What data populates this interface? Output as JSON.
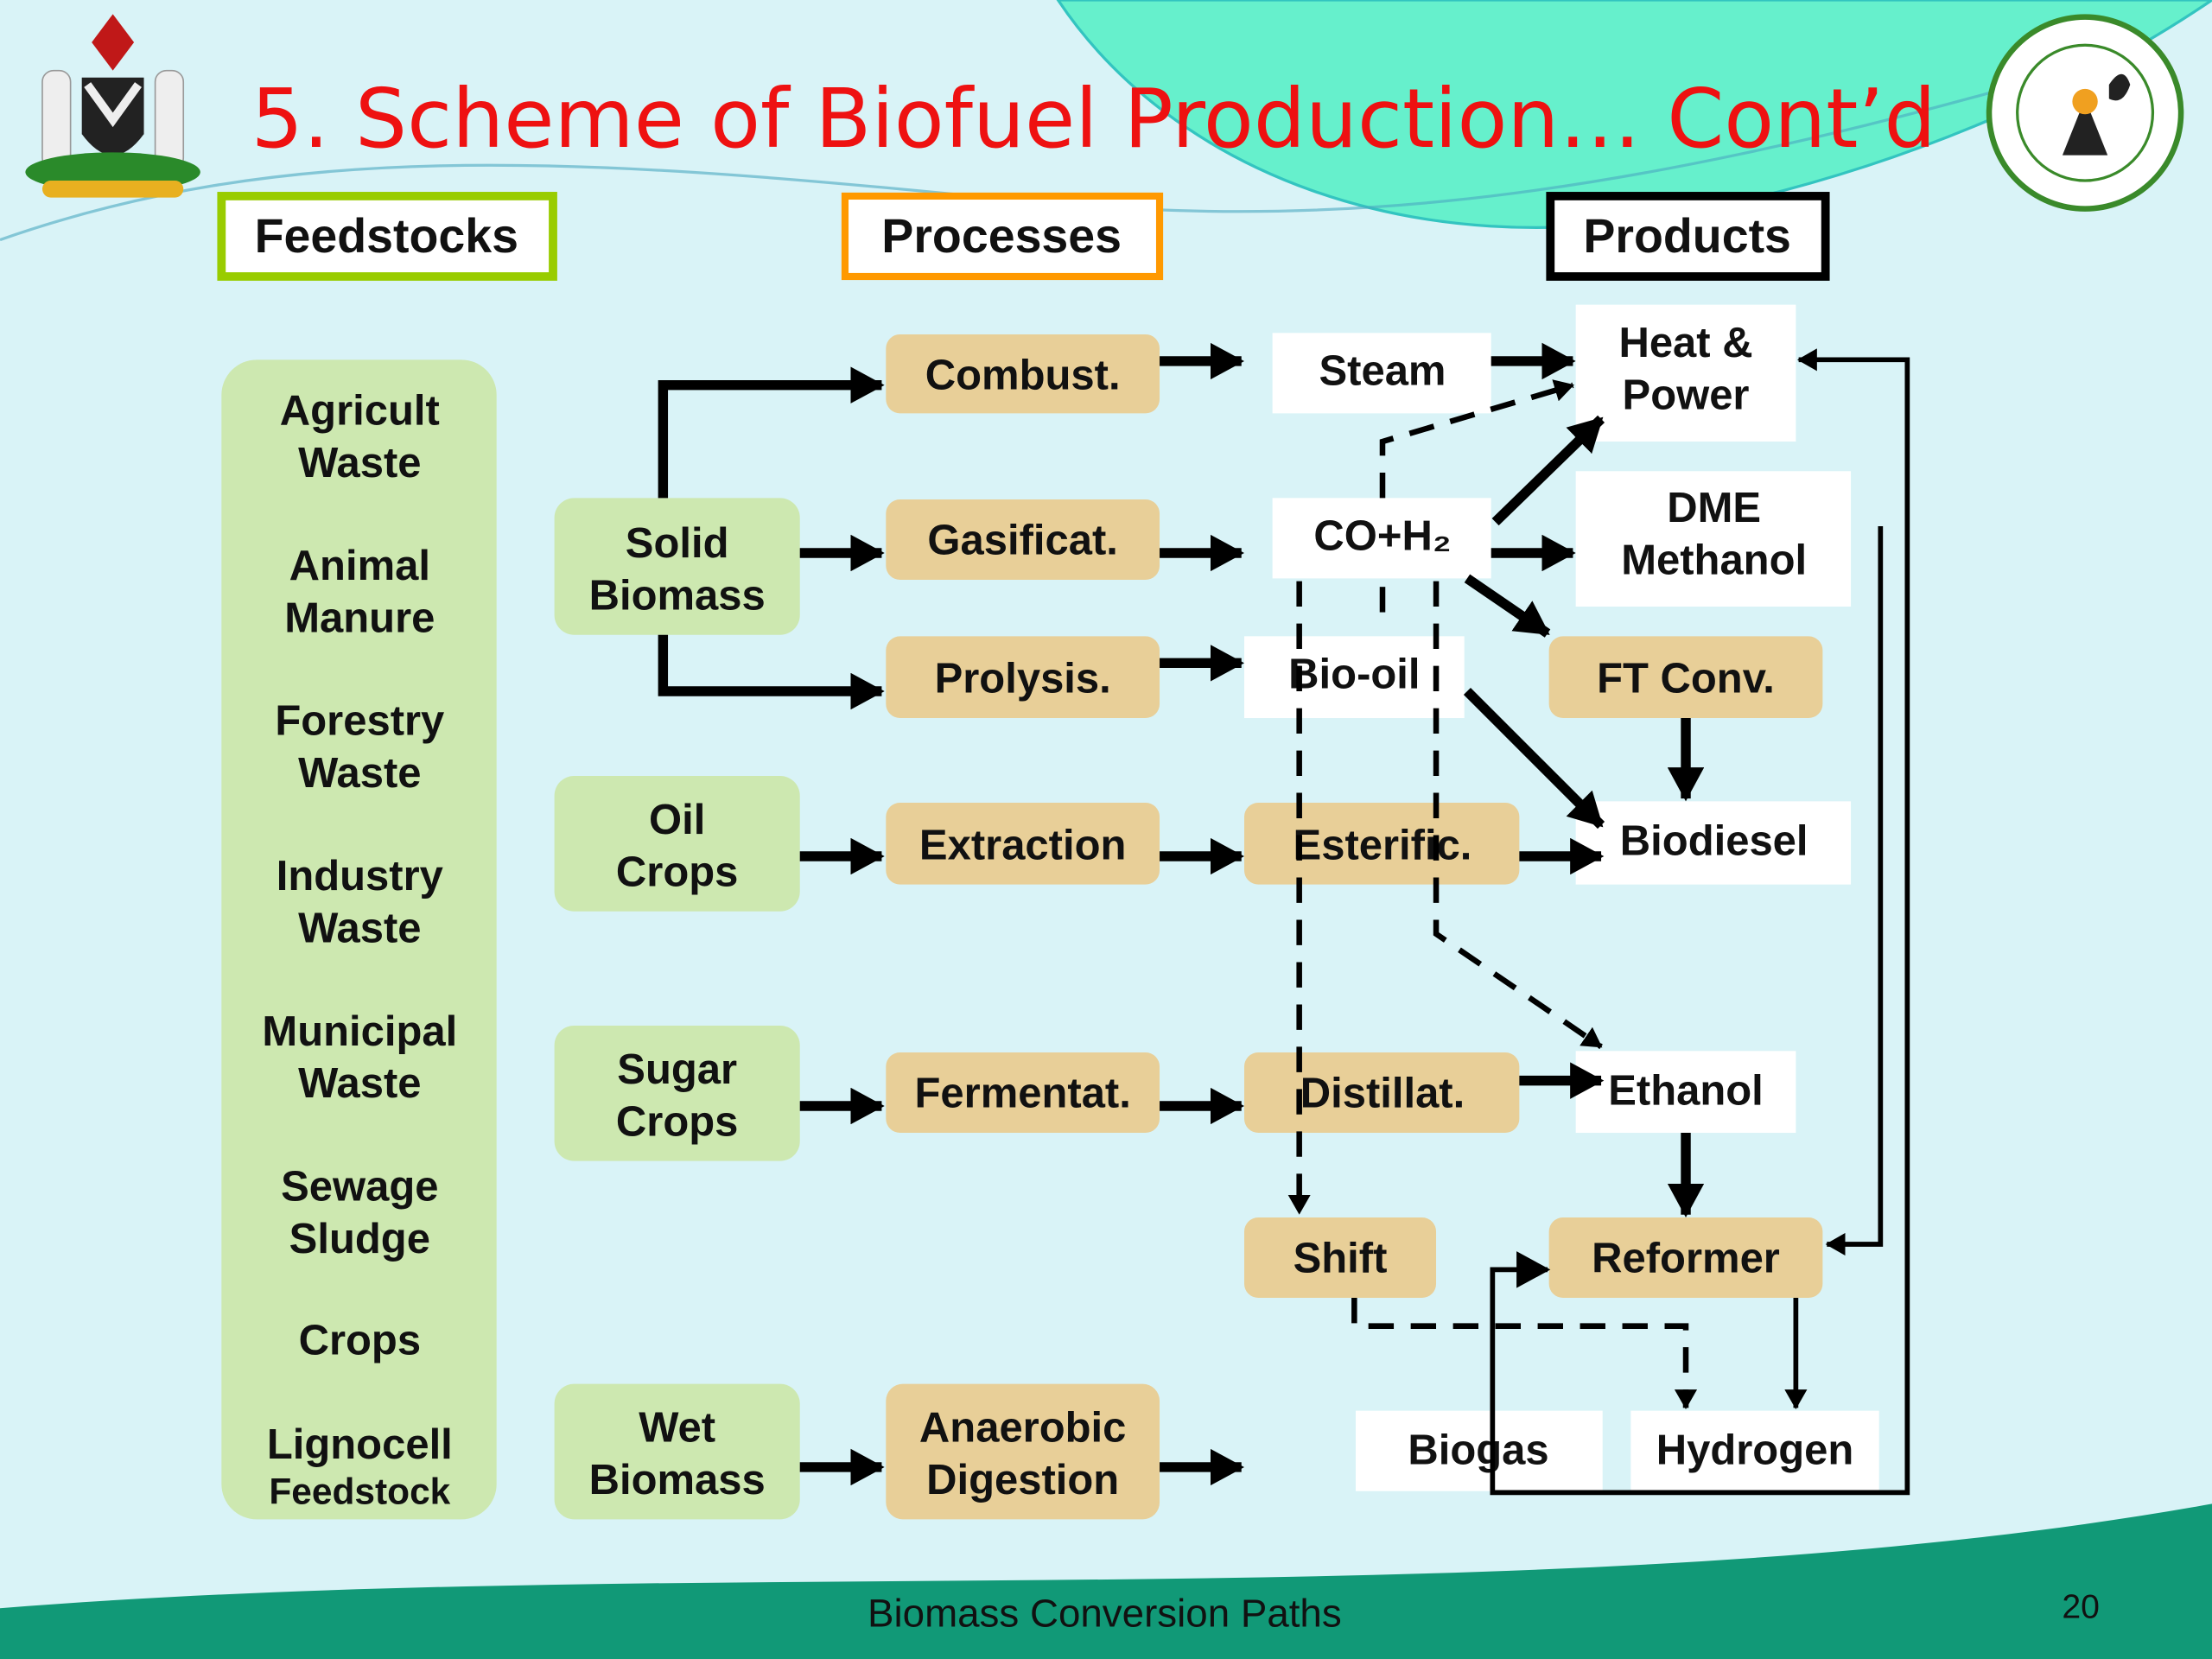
{
  "title": "5. Scheme of Biofuel Production… Cont’d",
  "headers": {
    "feedstocks": "Feedstocks",
    "processes": "Processes",
    "products": "Products"
  },
  "feedstocks": [
    [
      "Agricult",
      "Waste"
    ],
    [
      "Animal",
      "Manure"
    ],
    [
      "Forestry",
      "Waste"
    ],
    [
      "Industry",
      "Waste"
    ],
    [
      "Municipal",
      "Waste"
    ],
    [
      "Sewage",
      "Sludge"
    ],
    [
      "Crops"
    ],
    [
      "Lignocell",
      "Feedstock"
    ]
  ],
  "feedstock_groups": {
    "solid_biomass": [
      "Solid",
      "Biomass"
    ],
    "oil_crops": [
      "Oil",
      "Crops"
    ],
    "sugar_crops": [
      "Sugar",
      "Crops"
    ],
    "wet_biomass": [
      "Wet",
      "Biomass"
    ]
  },
  "processes": {
    "combust": "Combust.",
    "gasificat": "Gasificat.",
    "prolysis": "Prolysis.",
    "extraction": "Extraction",
    "fermentat": "Fermentat.",
    "anaerobic": [
      "Anaerobic",
      "Digestion"
    ],
    "esterific": "Esterific.",
    "distillat": "Distillat.",
    "shift": "Shift",
    "ft_conv": "FT Conv.",
    "reformer": "Reformer"
  },
  "intermediates": {
    "steam": "Steam",
    "co_h2": "CO+H₂",
    "bio_oil": "Bio-oil"
  },
  "products": {
    "heat_power": [
      "Heat &",
      "Power"
    ],
    "dme_methanol": [
      "DME",
      "Methanol"
    ],
    "biodiesel": "Biodiesel",
    "ethanol": "Ethanol",
    "biogas": "Biogas",
    "hydrogen": "Hydrogen"
  },
  "footer": {
    "caption": "Biomass Conversion Paths",
    "page_number": "20"
  },
  "colors": {
    "title": "#ee1111",
    "feedstock_fill": "#cde8b0",
    "process_fill": "#e8cf98",
    "feedstocks_border": "#99cc00",
    "processes_border": "#ff9900",
    "products_border": "#000000",
    "background": "#d9f3f7",
    "top_wave": "#66f0cc",
    "bottom_wave": "#119977"
  }
}
